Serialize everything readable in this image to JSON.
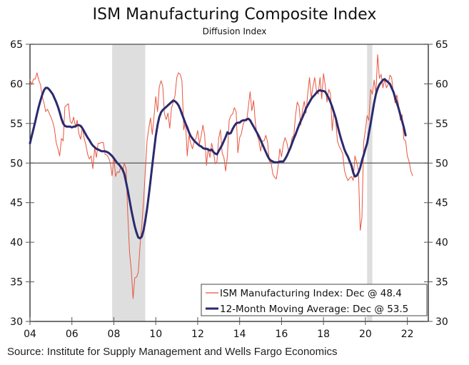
{
  "title": "ISM Manufacturing Composite Index",
  "subtitle": "Diffusion Index",
  "source": "Source: Institute for Supply Management and Wells Fargo Economics",
  "colors": {
    "ism": "#e8553f",
    "ma": "#2b2a6e",
    "recession": "#dedede",
    "axis": "#111111",
    "refline": "#555555"
  },
  "chart_data": {
    "type": "line",
    "title": "ISM Manufacturing Composite Index",
    "subtitle": "Diffusion Index",
    "xlabel": "",
    "ylabel": "",
    "x_start": "2004-01",
    "x_end_axis": 2023.0,
    "xlim": [
      2004.0,
      2023.0
    ],
    "ylim": [
      30,
      65
    ],
    "yticks": [
      30,
      35,
      40,
      45,
      50,
      55,
      60,
      65
    ],
    "xticks": [
      2004,
      2006,
      2008,
      2010,
      2012,
      2014,
      2016,
      2018,
      2020,
      2022
    ],
    "xtick_labels": [
      "04",
      "06",
      "08",
      "10",
      "12",
      "14",
      "16",
      "18",
      "20",
      "22"
    ],
    "reference_line": 50,
    "grid": false,
    "legend_position": "bottom-right",
    "recessions": [
      {
        "start": 2007.92,
        "end": 2009.5
      },
      {
        "start": 2020.08,
        "end": 2020.33
      }
    ],
    "series": [
      {
        "name": "ISM Manufacturing Index",
        "legend": "ISM Manufacturing Index: Dec @ 48.4",
        "frequency": "monthly",
        "values": [
          60.5,
          59.9,
          60.6,
          60.6,
          61.4,
          60.5,
          59.9,
          58.4,
          57.6,
          56.5,
          56.8,
          56.3,
          55.8,
          55.2,
          54.3,
          52.6,
          51.8,
          50.9,
          53.1,
          52.8,
          57.1,
          57.3,
          57.5,
          55.3,
          55.0,
          55.8,
          54.6,
          55.4,
          53.7,
          53.0,
          54.6,
          53.1,
          52.3,
          51.1,
          50.5,
          50.9,
          49.3,
          51.9,
          50.7,
          52.5,
          52.5,
          52.6,
          52.6,
          51.1,
          51.0,
          50.7,
          50.0,
          48.4,
          50.7,
          48.3,
          48.9,
          48.8,
          49.5,
          48.9,
          50.0,
          49.3,
          43.3,
          38.7,
          36.5,
          32.9,
          35.5,
          35.6,
          36.2,
          39.6,
          42.1,
          45.2,
          48.9,
          52.8,
          54.4,
          55.7,
          53.6,
          55.9,
          58.4,
          56.5,
          59.6,
          60.4,
          59.7,
          56.2,
          55.5,
          56.3,
          54.4,
          56.9,
          57.7,
          58.5,
          60.8,
          61.4,
          61.2,
          60.4,
          54.2,
          55.3,
          50.9,
          53.5,
          52.5,
          51.8,
          52.7,
          53.1,
          54.1,
          52.4,
          53.4,
          54.8,
          53.5,
          49.7,
          51.9,
          50.7,
          52.5,
          51.5,
          49.9,
          50.2,
          53.1,
          54.2,
          51.3,
          50.7,
          49.0,
          50.9,
          55.4,
          56.0,
          56.2,
          57.0,
          56.5,
          51.3,
          53.2,
          53.7,
          54.9,
          55.4,
          55.3,
          57.1,
          59.0,
          56.6,
          57.9,
          55.1,
          53.5,
          52.9,
          51.5,
          52.8,
          52.8,
          53.5,
          52.7,
          50.2,
          50.1,
          48.6,
          48.2,
          48.0,
          49.5,
          51.8,
          50.8,
          52.4,
          53.2,
          52.6,
          51.5,
          51.9,
          53.2,
          53.5,
          56.0,
          57.7,
          57.2,
          54.8,
          56.7,
          57.8,
          56.3,
          58.8,
          60.8,
          58.2,
          59.7,
          60.8,
          59.1,
          58.7,
          60.8,
          58.1,
          61.3,
          59.8,
          57.7,
          59.3,
          58.8,
          54.1,
          56.6,
          55.3,
          52.8,
          52.1,
          51.7,
          51.2,
          49.1,
          48.3,
          47.8,
          48.1,
          48.3,
          47.8,
          50.9,
          50.1,
          49.1,
          41.5,
          43.1,
          52.6,
          54.2,
          56.0,
          55.4,
          59.3,
          58.7,
          60.5,
          58.7,
          63.7,
          60.7,
          61.2,
          59.5,
          60.6,
          59.5,
          59.9,
          61.1,
          60.8,
          58.8,
          57.6,
          58.6,
          57.3,
          55.4,
          56.1,
          53.0,
          52.8,
          50.9,
          50.2,
          49.0,
          48.4
        ],
        "color": "#e8553f"
      },
      {
        "name": "12-Month Moving Average",
        "legend": "12-Month Moving Average: Dec @ 53.5",
        "frequency": "monthly",
        "values": [
          52.5,
          53.4,
          54.3,
          55.2,
          56.2,
          57.1,
          57.9,
          58.6,
          59.2,
          59.5,
          59.5,
          59.3,
          59.0,
          58.7,
          58.2,
          57.7,
          57.1,
          56.4,
          55.6,
          55.0,
          54.7,
          54.6,
          54.6,
          54.6,
          54.5,
          54.6,
          54.6,
          54.8,
          54.8,
          54.7,
          54.4,
          54.0,
          53.6,
          53.2,
          52.9,
          52.5,
          52.2,
          52.0,
          51.8,
          51.7,
          51.6,
          51.5,
          51.5,
          51.5,
          51.4,
          51.3,
          51.1,
          50.9,
          50.6,
          50.3,
          50.0,
          49.8,
          49.5,
          49.2,
          48.6,
          47.6,
          46.5,
          45.3,
          44.1,
          43.0,
          42.0,
          41.2,
          40.6,
          40.5,
          40.7,
          41.5,
          42.7,
          44.2,
          45.9,
          47.8,
          49.7,
          51.6,
          53.4,
          54.8,
          55.8,
          56.4,
          56.7,
          56.9,
          57.1,
          57.3,
          57.5,
          57.7,
          57.9,
          57.8,
          57.6,
          57.3,
          56.8,
          56.2,
          55.6,
          55.0,
          54.5,
          53.9,
          53.4,
          53.1,
          52.8,
          52.6,
          52.4,
          52.2,
          52.1,
          51.9,
          51.8,
          51.8,
          51.7,
          51.6,
          51.7,
          51.4,
          51.2,
          51.1,
          51.5,
          51.9,
          52.3,
          52.8,
          53.3,
          53.9,
          53.7,
          53.8,
          54.3,
          54.7,
          55.0,
          55.1,
          55.1,
          55.3,
          55.4,
          55.4,
          55.5,
          55.6,
          55.4,
          55.0,
          54.6,
          54.2,
          53.8,
          53.4,
          52.9,
          52.4,
          51.9,
          51.4,
          50.9,
          50.5,
          50.3,
          50.2,
          50.1,
          50.1,
          50.1,
          50.2,
          50.2,
          50.2,
          50.5,
          50.9,
          51.4,
          51.9,
          52.5,
          53.1,
          53.6,
          54.2,
          54.8,
          55.3,
          55.8,
          56.3,
          56.9,
          57.3,
          57.7,
          58.1,
          58.4,
          58.6,
          58.9,
          59.1,
          59.2,
          59.1,
          59.1,
          59.0,
          58.6,
          58.2,
          57.7,
          57.1,
          56.4,
          55.7,
          54.8,
          53.9,
          53.1,
          52.4,
          51.7,
          51.2,
          50.8,
          50.2,
          49.7,
          48.8,
          48.3,
          48.4,
          48.8,
          49.4,
          50.3,
          51.0,
          51.8,
          52.5,
          53.8,
          55.0,
          56.3,
          57.6,
          58.7,
          59.4,
          59.9,
          60.2,
          60.5,
          60.6,
          60.4,
          60.2,
          60.0,
          59.5,
          59.0,
          58.3,
          57.6,
          56.9,
          56.1,
          55.3,
          54.5,
          53.5
        ],
        "color": "#2b2a6e"
      }
    ]
  }
}
